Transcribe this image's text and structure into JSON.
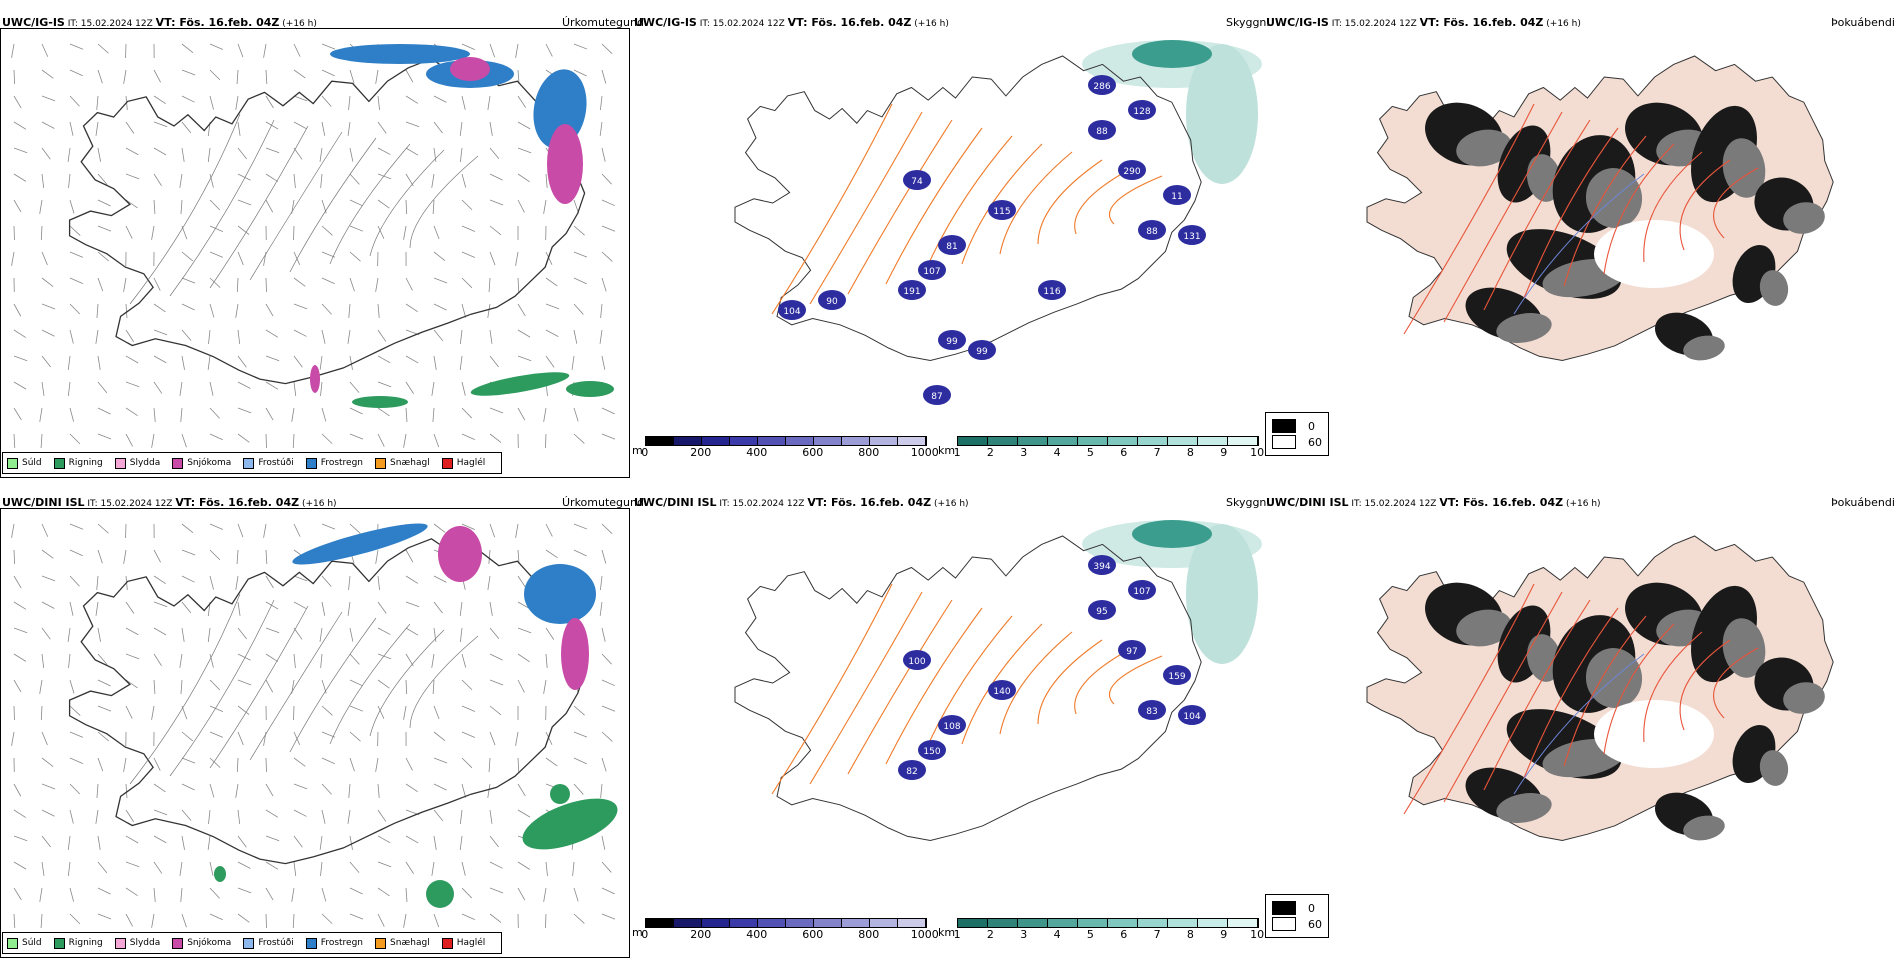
{
  "rows": [
    {
      "precip": {
        "model": "UWC/IG-IS",
        "rest": " IT: 15.02.2024 12Z ",
        "vt_label": "VT:",
        "vt": " Fös. 16.feb. 04Z",
        "lead": " (+16 h)",
        "title": "Úrkomutegund"
      },
      "cloud": {
        "model": "UWC/IG-IS",
        "rest": " IT: 15.02.2024 12Z ",
        "vt_label": "VT:",
        "vt": " Fös. 16.feb. 04Z",
        "lead": " (+16 h)",
        "title": "Skyggni"
      },
      "fog": {
        "model": "UWC/IG-IS",
        "rest": " IT: 15.02.2024 12Z ",
        "vt_label": "VT:",
        "vt": " Fös. 16.feb. 04Z",
        "lead": " (+16 h)",
        "title": "Þokuábendi"
      },
      "labels": [
        "286",
        "128",
        "88",
        "290",
        "74",
        "115",
        "11",
        "88",
        "131",
        "81",
        "107",
        "191",
        "116",
        "104",
        "90",
        "99",
        "99",
        "87"
      ]
    },
    {
      "precip": {
        "model": "UWC/DINI ISL",
        "rest": " IT: 15.02.2024 12Z ",
        "vt_label": "VT:",
        "vt": " Fös. 16.feb. 04Z",
        "lead": " (+16 h)",
        "title": "Úrkomutegund"
      },
      "cloud": {
        "model": "UWC/DINI ISL",
        "rest": " IT: 15.02.2024 12Z ",
        "vt_label": "VT:",
        "vt": " Fös. 16.feb. 04Z",
        "lead": " (+16 h)",
        "title": "Skyggni"
      },
      "fog": {
        "model": "UWC/DINI ISL",
        "rest": " IT: 15.02.2024 12Z ",
        "vt_label": "VT:",
        "vt": " Fös. 16.feb. 04Z",
        "lead": " (+16 h)",
        "title": "Þokuábendi"
      },
      "labels": [
        "394",
        "107",
        "95",
        "97",
        "100",
        "140",
        "159",
        "83",
        "104",
        "108",
        "150",
        "82"
      ]
    }
  ],
  "precip_legend": [
    {
      "label": "Súld",
      "color": "#90ee90"
    },
    {
      "label": "Rigning",
      "color": "#2e9b5e"
    },
    {
      "label": "Slydda",
      "color": "#f4a6d7"
    },
    {
      "label": "Snjókoma",
      "color": "#c84ba8"
    },
    {
      "label": "Frostúði",
      "color": "#8cb8ee"
    },
    {
      "label": "Frostregn",
      "color": "#2f7fc8"
    },
    {
      "label": "Snæhagl",
      "color": "#f39c1f"
    },
    {
      "label": "Haglél",
      "color": "#e02020"
    }
  ],
  "ceiling_scale": {
    "unit": "m",
    "ticks": [
      "0",
      "200",
      "400",
      "600",
      "800",
      "1000"
    ],
    "colors": [
      "#000000",
      "#18186a",
      "#25258f",
      "#3a3aa8",
      "#5252b5",
      "#6a6ac0",
      "#8383cc",
      "#9c9cd6",
      "#b4b4e0",
      "#ccccea"
    ]
  },
  "vis_scale": {
    "unit": "km",
    "ticks": [
      "1",
      "2",
      "3",
      "4",
      "5",
      "6",
      "7",
      "8",
      "9",
      "10"
    ],
    "colors": [
      "#1d7066",
      "#2f8379",
      "#40958b",
      "#53a79d",
      "#68b8ae",
      "#80c8bf",
      "#98d5ce",
      "#b0e1db",
      "#c8ece8",
      "#e0f6f3"
    ]
  },
  "fog_scale": {
    "items": [
      {
        "label": "0",
        "color": "#000000"
      },
      {
        "label": "60",
        "color": "#ffffff"
      }
    ]
  },
  "colors": {
    "coast": "#333333",
    "road": "#f07a28",
    "land_fog": "#f3ddd3",
    "road_fog": "#e8553a",
    "river": "#6e86d8",
    "hail_green": "#2e9b5e",
    "snow": "#c84ba8",
    "frz": "#2f7fc8",
    "teal": "#3a9d8e",
    "cloud_blue": "#2d2da0"
  }
}
